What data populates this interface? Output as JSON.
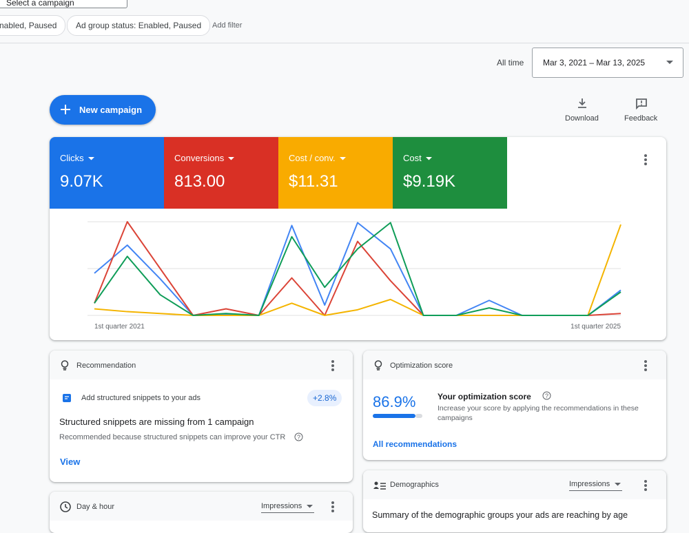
{
  "header": {
    "campaign_select": "Select a campaign",
    "filters": [
      "nabled, Paused",
      "Ad group status: Enabled, Paused"
    ],
    "add_filter": "Add filter"
  },
  "date_range": {
    "label": "All time",
    "value": "Mar 3, 2021 – Mar 13, 2025"
  },
  "actions": {
    "new_campaign": "New campaign",
    "download": "Download",
    "feedback": "Feedback"
  },
  "chart_data": {
    "type": "line",
    "categories": [
      "1st quarter 2021",
      null,
      null,
      null,
      null,
      null,
      null,
      null,
      null,
      null,
      null,
      null,
      null,
      null,
      null,
      null,
      "1st quarter 2025"
    ],
    "series": [
      {
        "name": "Clicks",
        "total": "9.07K",
        "color": "#4285f4",
        "tile_color": "#1a73e8",
        "values": [
          45,
          75,
          39,
          0,
          1,
          0,
          96,
          11,
          99,
          71,
          0,
          0,
          16,
          0,
          0,
          0,
          27
        ]
      },
      {
        "name": "Conversions",
        "total": "813.00",
        "color": "#db4437",
        "tile_color": "#d93025",
        "values": [
          13,
          100,
          50,
          0,
          7,
          0,
          40,
          0,
          79,
          37,
          0,
          0,
          0,
          0,
          0,
          0,
          2
        ]
      },
      {
        "name": "Cost / conv.",
        "total": "$11.31",
        "color": "#f4b400",
        "tile_color": "#f9ab00",
        "values": [
          7,
          4,
          2,
          0,
          0,
          0,
          13,
          0,
          6,
          17,
          0,
          0,
          0,
          0,
          0,
          0,
          97
        ]
      },
      {
        "name": "Cost",
        "total": "$9.19K",
        "color": "#0f9d58",
        "tile_color": "#1e8e3e",
        "values": [
          13,
          63,
          22,
          0,
          2,
          0,
          84,
          30,
          71,
          99,
          0,
          0,
          8,
          0,
          0,
          0,
          25
        ]
      }
    ],
    "ylim": [
      0,
      100
    ],
    "yticks": [
      0,
      50,
      100
    ],
    "grid": true
  },
  "recommendation": {
    "title": "Recommendation",
    "item": "Add structured snippets to your ads",
    "badge": "+2.8%",
    "heading": "Structured snippets are missing from 1 campaign",
    "reason": "Recommended because structured snippets can improve your CTR",
    "link": "View"
  },
  "optimization": {
    "title": "Optimization score",
    "score": "86.9%",
    "heading": "Your optimization score",
    "description": "Increase your score by applying the recommendations in these campaigns",
    "link": "All recommendations"
  },
  "demographics": {
    "title": "Demographics",
    "metric": "Impressions",
    "summary": "Summary of the demographic groups your ads are reaching by age"
  },
  "day_hour": {
    "title": "Day & hour",
    "metric": "Impressions"
  }
}
